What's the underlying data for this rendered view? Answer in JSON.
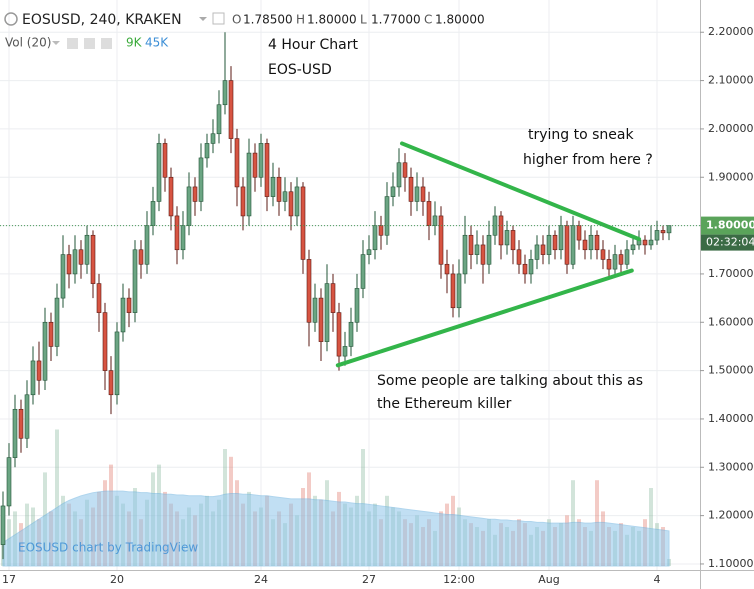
{
  "chart_data": {
    "type": "candlestick",
    "symbol": "EOSUSD, 240, KRAKEN",
    "ohlc_legend": [
      {
        "label": "O",
        "text": "1.78500"
      },
      {
        "label": "H",
        "text": "1.80000"
      },
      {
        "label": "L",
        "text": "1.77000"
      },
      {
        "label": "C",
        "text": "1.80000"
      }
    ],
    "volume_legend": {
      "name": "Vol (20)",
      "volume": "9K",
      "ma": "45K"
    },
    "annotations": [
      "4 Hour Chart",
      "EOS-USD",
      "trying to sneak",
      "higher from here ?",
      "Some people are talking about this as",
      "the Ethereum killer"
    ],
    "watermark": "EOSUSD chart by TradingView",
    "last_price_label": "1.80000",
    "countdown": "02:32:04",
    "up_color": "#6ba583",
    "down_color": "#d75442",
    "ma_color": "#8fc6ea",
    "trendline_color": "#33b54a",
    "grid": true,
    "ylim": [
      1.0875,
      2.2667
    ],
    "yticks": [
      {
        "value": 1.1,
        "label": "1.10000"
      },
      {
        "value": 1.2,
        "label": "1.20000"
      },
      {
        "value": 1.3,
        "label": "1.30000"
      },
      {
        "value": 1.4,
        "label": "1.40000"
      },
      {
        "value": 1.5,
        "label": "1.50000"
      },
      {
        "value": 1.6,
        "label": "1.60000"
      },
      {
        "value": 1.7,
        "label": "1.70000"
      },
      {
        "value": 1.8,
        "label": "1.80000"
      },
      {
        "value": 1.9,
        "label": "1.90000"
      },
      {
        "value": 2.0,
        "label": "2.00000"
      },
      {
        "value": 2.1,
        "label": "2.10000"
      },
      {
        "value": 2.2,
        "label": "2.20000"
      }
    ],
    "categories": [
      null,
      "17",
      null,
      null,
      null,
      null,
      null,
      null,
      null,
      null,
      null,
      null,
      null,
      null,
      null,
      null,
      null,
      null,
      null,
      "20",
      null,
      null,
      null,
      null,
      null,
      null,
      null,
      null,
      null,
      null,
      null,
      null,
      null,
      null,
      null,
      null,
      null,
      null,
      null,
      null,
      null,
      null,
      null,
      "24",
      null,
      null,
      null,
      null,
      null,
      null,
      null,
      null,
      null,
      null,
      null,
      null,
      null,
      null,
      null,
      null,
      null,
      "27",
      null,
      null,
      null,
      null,
      null,
      null,
      null,
      null,
      null,
      null,
      null,
      null,
      null,
      null,
      "12:00",
      null,
      null,
      null,
      null,
      null,
      null,
      null,
      null,
      null,
      null,
      null,
      null,
      null,
      null,
      "Aug",
      null,
      null,
      null,
      null,
      null,
      null,
      null,
      null,
      null,
      null,
      null,
      null,
      null,
      null,
      null,
      null,
      null,
      "4",
      null,
      null
    ],
    "open": [
      1.14,
      1.22,
      1.32,
      1.42,
      1.36,
      1.45,
      1.52,
      1.48,
      1.6,
      1.55,
      1.65,
      1.74,
      1.7,
      1.75,
      1.72,
      1.78,
      1.68,
      1.62,
      1.5,
      1.45,
      1.58,
      1.65,
      1.62,
      1.75,
      1.72,
      1.8,
      1.85,
      1.97,
      1.9,
      1.82,
      1.75,
      1.8,
      1.88,
      1.85,
      1.94,
      1.97,
      1.99,
      2.05,
      2.1,
      1.98,
      1.88,
      1.82,
      1.95,
      1.9,
      1.97,
      1.86,
      1.9,
      1.85,
      1.87,
      1.82,
      1.88,
      1.73,
      1.6,
      1.65,
      1.56,
      1.68,
      1.62,
      1.53,
      1.55,
      1.6,
      1.67,
      1.74,
      1.75,
      1.8,
      1.78,
      1.86,
      1.88,
      1.93,
      1.9,
      1.85,
      1.88,
      1.85,
      1.8,
      1.82,
      1.72,
      1.7,
      1.63,
      1.7,
      1.78,
      1.74,
      1.76,
      1.72,
      1.78,
      1.82,
      1.76,
      1.79,
      1.75,
      1.72,
      1.7,
      1.73,
      1.76,
      1.74,
      1.78,
      1.75,
      1.8,
      1.72,
      1.8,
      1.77,
      1.75,
      1.78,
      1.75,
      1.73,
      1.71,
      1.74,
      1.72,
      1.75,
      1.76,
      1.77,
      1.76,
      1.77,
      1.79,
      1.785
    ],
    "high": [
      1.25,
      1.35,
      1.45,
      1.44,
      1.48,
      1.55,
      1.56,
      1.63,
      1.62,
      1.68,
      1.78,
      1.76,
      1.78,
      1.77,
      1.8,
      1.79,
      1.7,
      1.64,
      1.53,
      1.6,
      1.68,
      1.67,
      1.77,
      1.77,
      1.83,
      1.88,
      1.99,
      1.98,
      1.92,
      1.84,
      1.83,
      1.91,
      1.9,
      1.97,
      1.99,
      2.02,
      2.08,
      2.2,
      2.13,
      2.0,
      1.9,
      1.98,
      1.97,
      1.99,
      1.98,
      1.93,
      1.92,
      1.9,
      1.89,
      1.9,
      1.89,
      1.75,
      1.68,
      1.67,
      1.72,
      1.7,
      1.64,
      1.58,
      1.63,
      1.7,
      1.77,
      1.78,
      1.83,
      1.82,
      1.89,
      1.91,
      1.96,
      1.95,
      1.92,
      1.91,
      1.9,
      1.87,
      1.85,
      1.84,
      1.75,
      1.72,
      1.73,
      1.82,
      1.8,
      1.79,
      1.78,
      1.81,
      1.84,
      1.83,
      1.81,
      1.8,
      1.77,
      1.74,
      1.75,
      1.78,
      1.78,
      1.8,
      1.79,
      1.82,
      1.81,
      1.82,
      1.81,
      1.79,
      1.8,
      1.79,
      1.77,
      1.75,
      1.76,
      1.75,
      1.77,
      1.78,
      1.79,
      1.78,
      1.8,
      1.81,
      1.8,
      1.8
    ],
    "low": [
      1.11,
      1.2,
      1.3,
      1.33,
      1.34,
      1.43,
      1.45,
      1.46,
      1.52,
      1.53,
      1.63,
      1.67,
      1.68,
      1.69,
      1.7,
      1.65,
      1.58,
      1.46,
      1.41,
      1.43,
      1.56,
      1.59,
      1.6,
      1.69,
      1.7,
      1.78,
      1.83,
      1.87,
      1.79,
      1.72,
      1.73,
      1.78,
      1.82,
      1.83,
      1.92,
      1.95,
      1.97,
      2.03,
      1.95,
      1.84,
      1.79,
      1.8,
      1.87,
      1.88,
      1.83,
      1.84,
      1.82,
      1.83,
      1.79,
      1.8,
      1.7,
      1.55,
      1.58,
      1.52,
      1.54,
      1.58,
      1.5,
      1.51,
      1.53,
      1.58,
      1.65,
      1.72,
      1.73,
      1.75,
      1.76,
      1.84,
      1.86,
      1.87,
      1.82,
      1.83,
      1.82,
      1.77,
      1.78,
      1.69,
      1.66,
      1.61,
      1.61,
      1.68,
      1.71,
      1.72,
      1.68,
      1.7,
      1.76,
      1.73,
      1.74,
      1.72,
      1.7,
      1.68,
      1.68,
      1.71,
      1.72,
      1.72,
      1.73,
      1.73,
      1.7,
      1.71,
      1.75,
      1.73,
      1.73,
      1.73,
      1.71,
      1.69,
      1.7,
      1.7,
      1.71,
      1.74,
      1.75,
      1.74,
      1.75,
      1.76,
      1.77,
      1.77
    ],
    "close": [
      1.22,
      1.32,
      1.42,
      1.36,
      1.45,
      1.52,
      1.48,
      1.6,
      1.55,
      1.65,
      1.74,
      1.7,
      1.75,
      1.72,
      1.78,
      1.68,
      1.62,
      1.5,
      1.45,
      1.58,
      1.65,
      1.62,
      1.75,
      1.72,
      1.8,
      1.85,
      1.97,
      1.9,
      1.82,
      1.75,
      1.8,
      1.88,
      1.85,
      1.94,
      1.97,
      1.99,
      2.05,
      2.1,
      1.98,
      1.88,
      1.82,
      1.95,
      1.9,
      1.97,
      1.86,
      1.9,
      1.85,
      1.87,
      1.82,
      1.88,
      1.73,
      1.6,
      1.65,
      1.56,
      1.68,
      1.62,
      1.53,
      1.55,
      1.6,
      1.67,
      1.74,
      1.75,
      1.8,
      1.78,
      1.86,
      1.88,
      1.93,
      1.9,
      1.85,
      1.88,
      1.85,
      1.8,
      1.82,
      1.72,
      1.7,
      1.63,
      1.7,
      1.78,
      1.74,
      1.76,
      1.72,
      1.78,
      1.82,
      1.76,
      1.79,
      1.75,
      1.72,
      1.7,
      1.73,
      1.76,
      1.74,
      1.78,
      1.75,
      1.8,
      1.72,
      1.8,
      1.77,
      1.75,
      1.78,
      1.75,
      1.73,
      1.71,
      1.74,
      1.72,
      1.75,
      1.76,
      1.77,
      1.76,
      1.77,
      1.79,
      1.785,
      1.8
    ],
    "volume": [
      40,
      60,
      70,
      55,
      80,
      75,
      60,
      120,
      70,
      175,
      90,
      80,
      70,
      60,
      85,
      75,
      95,
      110,
      130,
      90,
      80,
      70,
      100,
      60,
      85,
      120,
      130,
      95,
      80,
      70,
      60,
      75,
      65,
      80,
      90,
      70,
      85,
      150,
      140,
      110,
      80,
      95,
      70,
      75,
      90,
      60,
      70,
      55,
      80,
      65,
      100,
      120,
      90,
      85,
      110,
      70,
      95,
      80,
      75,
      90,
      150,
      70,
      80,
      60,
      90,
      75,
      70,
      60,
      55,
      65,
      50,
      60,
      45,
      70,
      80,
      90,
      75,
      60,
      55,
      50,
      45,
      60,
      40,
      55,
      50,
      45,
      60,
      55,
      40,
      50,
      45,
      60,
      50,
      55,
      65,
      110,
      60,
      50,
      45,
      110,
      70,
      50,
      45,
      55,
      40,
      50,
      45,
      60,
      100,
      55,
      50,
      9
    ],
    "volume_ma": [
      30,
      35,
      40,
      45,
      50,
      55,
      60,
      65,
      70,
      75,
      80,
      84,
      87,
      90,
      92,
      94,
      95,
      96,
      96,
      96,
      96,
      95,
      95,
      94,
      94,
      93,
      93,
      92,
      92,
      91,
      91,
      90,
      90,
      90,
      89,
      89,
      90,
      92,
      93,
      93,
      92,
      92,
      91,
      90,
      90,
      89,
      88,
      87,
      86,
      86,
      86,
      86,
      85,
      85,
      84,
      83,
      82,
      82,
      81,
      80,
      80,
      79,
      78,
      77,
      76,
      75,
      74,
      73,
      72,
      71,
      70,
      69,
      68,
      67,
      66,
      66,
      65,
      64,
      63,
      62,
      61,
      60,
      60,
      59,
      59,
      58,
      58,
      57,
      57,
      56,
      56,
      55,
      55,
      55,
      55,
      56,
      56,
      55,
      55,
      56,
      56,
      55,
      54,
      53,
      52,
      51,
      50,
      49,
      48,
      47,
      46,
      45
    ],
    "trendlines": [
      {
        "x": [
          66.5,
          106
        ],
        "y": [
          1.97,
          1.772
        ]
      },
      {
        "x": [
          55.8,
          104.8
        ],
        "y": [
          1.511,
          1.707
        ]
      }
    ]
  }
}
